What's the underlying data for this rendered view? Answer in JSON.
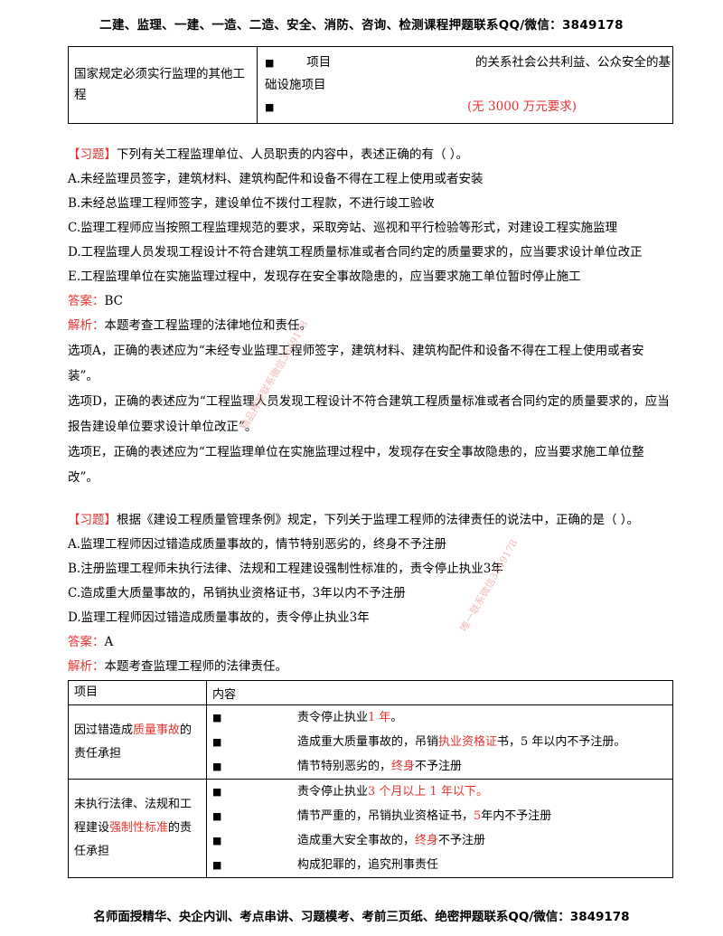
{
  "header": "二建、监理、一建、一造、二造、安全、消防、咨询、检测课程押题联系QQ/微信：3849178",
  "footer": "名师面授精华、央企内训、考点串讲、习题模考、考前三页纸、绝密押题联系QQ/微信：3849178",
  "table1": {
    "label": "国家规定必须实行监理的其他工程",
    "line1_a": "项目",
    "line1_b": "的关系社会公共利益、公众安全的基",
    "line1_c": "础设施项目",
    "line2_red": "(无 3000 万元要求)",
    "bullet": "■"
  },
  "q1": {
    "tag": "【习题】",
    "stem": "下列有关工程监理单位、人员职责的内容中，表述正确的有（    ）。",
    "options": [
      "A.未经监理员签字，建筑材料、建筑构配件和设备不得在工程上使用或者安装",
      "B.未经总监理工程师签字，建设单位不拨付工程款，不进行竣工验收",
      "C.监理工程师应当按照工程监理规范的要求，采取旁站、巡视和平行检验等形式，对建设工程实施监理",
      "D.工程监理人员发现工程设计不符合建筑工程质量标准或者合同约定的质量要求的，应当要求设计单位改正",
      "E.工程监理单位在实施监理过程中，发现存在安全事故隐患的，应当要求施工单位暂时停止施工"
    ],
    "answer_label": "答案：",
    "answer": "BC",
    "analysis_label": "解析：",
    "analysis": "本题考查工程监理的法律地位和责任。",
    "notes": [
      "选项A，正确的表述应为“未经专业监理工程师签字，建筑材料、建筑构配件和设备不得在工程上使用或者安装”。",
      "选项D，正确的表述应为“工程监理人员发现工程设计不符合建筑工程质量标准或者合同约定的质量要求的，应当报告建设单位要求设计单位改正”。",
      "选项E，正确的表述应为“工程监理单位在实施监理过程中，发现存在安全事故隐患的，应当要求施工单位整改”。"
    ]
  },
  "q2": {
    "tag": "【习题】",
    "stem": "根据《建设工程质量管理条例》规定，下列关于监理工程师的法律责任的说法中，正确的是（    ）。",
    "options": [
      "A.监理工程师因过错造成质量事故的，情节特别恶劣的，终身不予注册",
      "B.注册监理工程师未执行法律、法规和工程建设强制性标准的，责令停止执业3年",
      "C.造成重大质量事故的，吊销执业资格证书，3年以内不予注册",
      "D.监理工程师因过错造成质量事故的，责令停止执业3年"
    ],
    "answer_label": "答案：",
    "answer": "A",
    "analysis_label": "解析：",
    "analysis": "本题考查监理工程师的法律责任。"
  },
  "table2": {
    "col1": "项目",
    "col2": "内容",
    "bullet": "■",
    "r1_label_a": "因过错造成",
    "r1_label_red": "质量事故",
    "r1_label_b": "的责任承担",
    "r1": {
      "l1_a": "责令停止执业",
      "l1_red": "1 年",
      "l1_b": "。",
      "l2_a": "造成重大质量事故的，吊销",
      "l2_red": "执业资格证",
      "l2_b": "书，5 年以内不予注册。",
      "l3_a": "情节特别恶劣的，",
      "l3_red": "终身",
      "l3_b": "不予注册"
    },
    "r2_label_a": "未执行法律、法规和工程建设",
    "r2_label_red": "强制性标准",
    "r2_label_b": "的责任承担",
    "r2": {
      "l1_a": "责令停止执业",
      "l1_red": "3 个月以上 1 年以下。",
      "l2_a": "情节严重的，吊销执业资格证书，",
      "l2_red": "5",
      "l2_b": "年内不予注册",
      "l3_a": "造成重大安全事故的，",
      "l3_red": "终身",
      "l3_b": "不予注册",
      "l4": "构成犯罪的，追究刑事责任"
    }
  },
  "watermarks": [
    "精品押题联系微信3849178",
    "唯一联系微信3849178"
  ]
}
